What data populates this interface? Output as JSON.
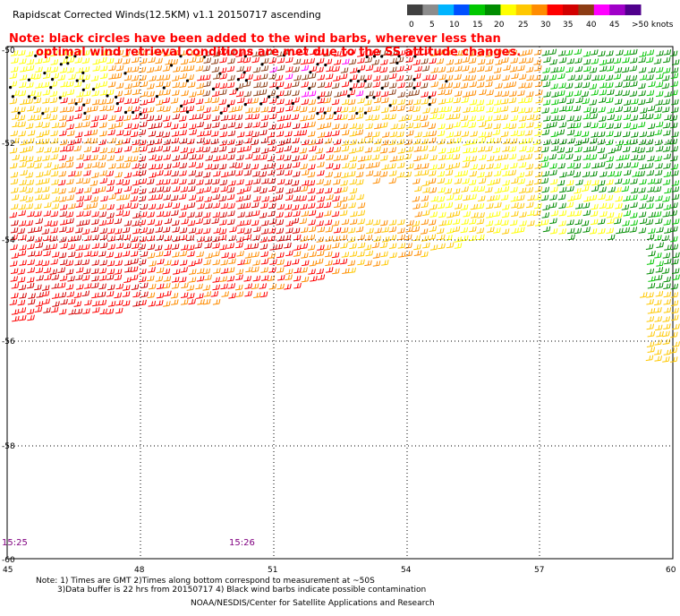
{
  "header": {
    "title": "Rapidscat Corrected Winds(12.5KM) v1.1 20150717 ascending"
  },
  "legend": {
    "colors": [
      "#404040",
      "#8c8c8c",
      "#00b4ff",
      "#0050ff",
      "#00c800",
      "#008c00",
      "#ffff00",
      "#ffc800",
      "#ff8c00",
      "#ff0000",
      "#d20000",
      "#8c3c14",
      "#ff00ff",
      "#a000c8",
      "#50008c"
    ],
    "labels": [
      "0",
      "5",
      "10",
      "15",
      "20",
      "25",
      "30",
      "35",
      "40",
      "45",
      ">50 knots"
    ]
  },
  "note": {
    "line1": "Note: black circles have been added to the wind barbs, wherever less than",
    "line2": "optimal wind retrieval conditions are met due to the SS attitude changes."
  },
  "map": {
    "lat_labels": [
      "-50",
      "-52",
      "-54",
      "-56",
      "-58",
      "-60"
    ],
    "lon_labels": [
      "45",
      "48",
      "51",
      "54",
      "57",
      "60"
    ],
    "time_labels": [
      "15:25",
      "15:26"
    ]
  },
  "footer": {
    "line1": "Note: 1) Times are GMT 2)Times along bottom correspond to measurement at ~50S",
    "line2": "3)Data buffer is 22 hrs from 20150717 4) Black wind barbs indicate possible contamination",
    "line3": "NOAA/NESDIS/Center for Satellite Applications and Research"
  }
}
